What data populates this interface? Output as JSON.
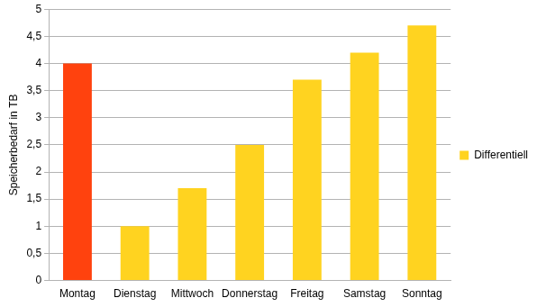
{
  "chart_data": {
    "type": "bar",
    "y_label": "Speicherbedarf in TB",
    "categories": [
      "Montag",
      "Dienstag",
      "Mittwoch",
      "Donnerstag",
      "Freitag",
      "Samstag",
      "Sonntag"
    ],
    "series": [
      {
        "name": "Differentiell",
        "color": "#ffd320",
        "colors": [
          "#ff420e",
          "#ffd320",
          "#ffd320",
          "#ffd320",
          "#ffd320",
          "#ffd320",
          "#ffd320"
        ],
        "values": [
          4,
          1,
          1.7,
          2.5,
          3.7,
          4.2,
          4.7
        ]
      }
    ],
    "ylim": [
      0,
      5
    ],
    "yticks": [
      0,
      {
        "value": 0.5,
        "label": "0,5"
      },
      1,
      {
        "value": 1.5,
        "label": "1,5"
      },
      2,
      {
        "value": 2.5,
        "label": "2,5"
      },
      3,
      {
        "value": 3.5,
        "label": "3,5"
      },
      4,
      {
        "value": 4.5,
        "label": "4,5"
      },
      5
    ],
    "grid": true,
    "legend": "right"
  }
}
